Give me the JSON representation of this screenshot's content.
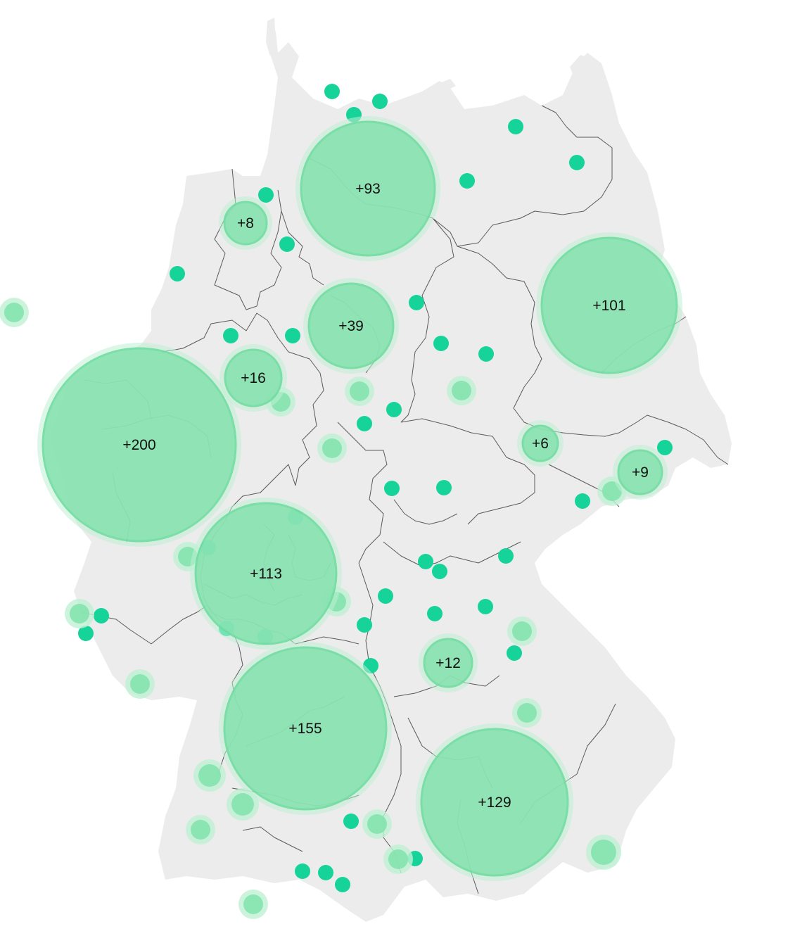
{
  "map": {
    "colors": {
      "land": "#ececec",
      "borders": "#5a5a5a",
      "cluster_fill": "#86e2b0",
      "cluster_halo": "#bff1d4",
      "cluster_ring": "#6fdc9f",
      "point": "#16d39a",
      "soft_point": "#7fe3ac",
      "label": "#111111"
    },
    "clusters": [
      {
        "id": "hamburg",
        "label": "+93",
        "count": 93
      },
      {
        "id": "bremen-west",
        "label": "+8",
        "count": 8
      },
      {
        "id": "berlin",
        "label": "+101",
        "count": 101
      },
      {
        "id": "hannover",
        "label": "+39",
        "count": 39
      },
      {
        "id": "muenster",
        "label": "+16",
        "count": 16
      },
      {
        "id": "rhein-ruhr",
        "label": "+200",
        "count": 200
      },
      {
        "id": "leipzig",
        "label": "+6",
        "count": 6
      },
      {
        "id": "dresden",
        "label": "+9",
        "count": 9
      },
      {
        "id": "rhein-main",
        "label": "+113",
        "count": 113
      },
      {
        "id": "nuernberg",
        "label": "+12",
        "count": 12
      },
      {
        "id": "stuttgart",
        "label": "+155",
        "count": 155
      },
      {
        "id": "muenchen",
        "label": "+129",
        "count": 129
      }
    ]
  }
}
